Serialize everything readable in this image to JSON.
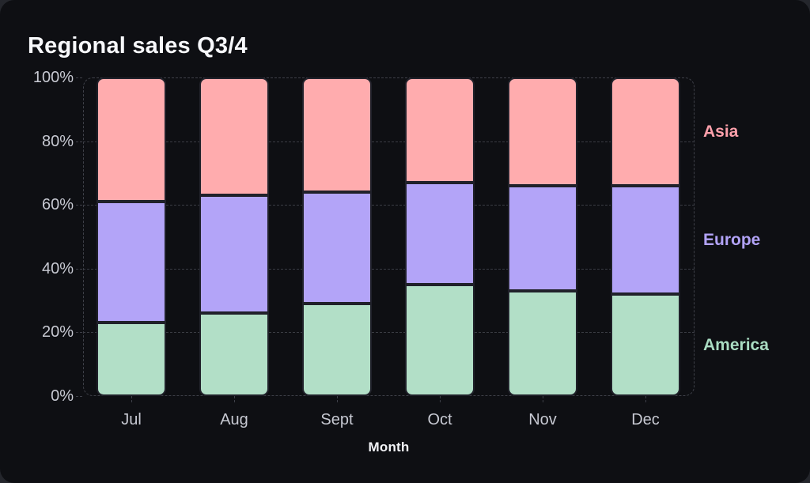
{
  "title": "Regional sales Q3/4",
  "chart_data": {
    "type": "bar",
    "variant": "stacked-percent",
    "title": "Regional sales Q3/4",
    "xlabel": "Month",
    "ylabel": "",
    "categories": [
      "Jul",
      "Aug",
      "Sept",
      "Oct",
      "Nov",
      "Dec"
    ],
    "series": [
      {
        "name": "America",
        "color": "#b2dfc7",
        "label_color": "#a9dcc2",
        "values": [
          23,
          26,
          29,
          35,
          33,
          32
        ]
      },
      {
        "name": "Europe",
        "color": "#b3a4f8",
        "label_color": "#b2a3f7",
        "values": [
          38,
          37,
          35,
          32,
          33,
          34
        ]
      },
      {
        "name": "Asia",
        "color": "#ffacae",
        "label_color": "#fda0ab",
        "values": [
          39,
          37,
          36,
          33,
          34,
          34
        ]
      }
    ],
    "y_ticks": [
      "0%",
      "20%",
      "40%",
      "60%",
      "80%",
      "100%"
    ],
    "ylim": [
      0,
      100
    ],
    "grid": "dashed",
    "legend_position": "right-of-plot, aligned to last bar segment midpoints",
    "colors": {
      "card_background": "#0e0f13",
      "outer_background": "#24262c",
      "grid": "#3e4048",
      "axis_text": "#c7c9d2",
      "title_text": "#f7f8fb"
    }
  }
}
